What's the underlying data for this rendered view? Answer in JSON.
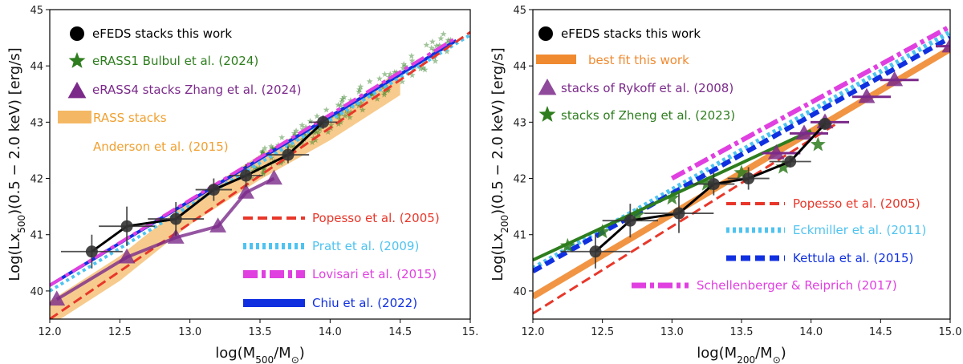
{
  "chart_data": [
    {
      "type": "scatter",
      "panel": "left",
      "xlabel": "log(M500/M☉)",
      "ylabel": "Log(Lx500)(0.5 − 2.0 keV) [erg/s]",
      "xlim": [
        12.0,
        15.0
      ],
      "ylim": [
        39.5,
        45.0
      ],
      "xticks": [
        "12.0",
        "12.5",
        "13.0",
        "13.5",
        "14.0",
        "14.5",
        "15."
      ],
      "yticks": [
        "40",
        "41",
        "42",
        "43",
        "44",
        "45"
      ],
      "eFEDS": {
        "name": "eFEDS stacks this work",
        "color": "#000000",
        "x": [
          12.3,
          12.55,
          12.9,
          13.17,
          13.4,
          13.7,
          13.95
        ],
        "y": [
          40.7,
          41.15,
          41.28,
          41.8,
          42.05,
          42.42,
          43.0
        ],
        "xerr": [
          0.22,
          0.2,
          0.2,
          0.13,
          0.12,
          0.15,
          0.1
        ],
        "yerr": [
          0.3,
          0.35,
          0.3,
          0.2,
          0.2,
          0.15,
          0.12
        ]
      },
      "eRASS4": {
        "name": "eRASS4 stacks Zhang et al. (2024)",
        "color": "#7b2a8a",
        "x": [
          12.05,
          12.55,
          12.9,
          13.2,
          13.4,
          13.6
        ],
        "y": [
          39.85,
          40.6,
          40.95,
          41.15,
          41.75,
          42.0
        ]
      },
      "eRASS1": {
        "name": "eRASS1 Bulbul et al. (2024)",
        "color": "#2e7d1e",
        "x_range": [
          13.4,
          14.9
        ],
        "line": [
          [
            13.4,
            42.1
          ],
          [
            14.9,
            44.5
          ]
        ]
      },
      "RASS": {
        "name": "RASS stacks",
        "name2": "Anderson et al. (2015)",
        "color": "#f0a030",
        "centre": [
          [
            12.0,
            39.6
          ],
          [
            12.5,
            40.4
          ],
          [
            13.0,
            41.4
          ],
          [
            13.5,
            42.2
          ],
          [
            14.0,
            42.9
          ],
          [
            14.5,
            43.7
          ]
        ]
      },
      "relations": [
        {
          "name": "Popesso et al. (2005)",
          "color": "#e8372a",
          "style": "dashed",
          "line": [
            [
              12.0,
              39.5
            ],
            [
              15.0,
              44.6
            ]
          ]
        },
        {
          "name": "Pratt et al. (2009)",
          "color": "#4fc3f0",
          "style": "dotted",
          "line": [
            [
              12.0,
              40.0
            ],
            [
              15.0,
              44.55
            ]
          ]
        },
        {
          "name": "Lovisari et al. (2015)",
          "color": "#e040e0",
          "style": "dashdot",
          "line": [
            [
              12.0,
              40.1
            ],
            [
              14.9,
              44.5
            ]
          ]
        },
        {
          "name": "Chiu et al. (2022)",
          "color": "#1030e0",
          "style": "solid",
          "line": [
            [
              12.0,
              40.1
            ],
            [
              14.9,
              44.45
            ]
          ]
        }
      ]
    },
    {
      "type": "scatter",
      "panel": "right",
      "xlabel": "log(M200/M☉)",
      "ylabel": "Log(Lx200)(0.5 − 2.0 keV) [erg/s]",
      "xlim": [
        12.0,
        15.0
      ],
      "ylim": [
        39.5,
        45.0
      ],
      "xticks": [
        "12.0",
        "12.5",
        "13.0",
        "13.5",
        "14.0",
        "14.5",
        "15.0"
      ],
      "yticks": [
        "40",
        "41",
        "42",
        "43",
        "44",
        "45"
      ],
      "eFEDS": {
        "name": "eFEDS stacks this work",
        "color": "#000000",
        "x": [
          12.45,
          12.7,
          13.05,
          13.3,
          13.55,
          13.85,
          14.1
        ],
        "y": [
          40.7,
          41.25,
          41.38,
          41.9,
          42.0,
          42.3,
          42.97
        ],
        "xerr": [
          0.25,
          0.2,
          0.25,
          0.15,
          0.15,
          0.15,
          0.05
        ],
        "yerr": [
          0.3,
          0.3,
          0.35,
          0.2,
          0.2,
          0.1,
          0.1
        ]
      },
      "bestfit": {
        "name": "best fit this work",
        "color": "#f08a30",
        "line": [
          [
            12.0,
            39.9
          ],
          [
            15.0,
            44.3
          ]
        ]
      },
      "rykoff": {
        "name": "stacks of Rykoff et al. (2008)",
        "color": "#7b2a8a",
        "x": [
          13.75,
          13.95,
          14.1,
          14.4,
          14.6,
          15.0
        ],
        "y": [
          42.45,
          42.8,
          43.0,
          43.45,
          43.75,
          44.35
        ]
      },
      "zheng": {
        "name": "stacks of Zheng et al. (2023)",
        "color": "#2e7d1e",
        "x": [
          12.25,
          12.5,
          12.75,
          13.0,
          13.25,
          13.5,
          13.8,
          14.05
        ],
        "y": [
          40.8,
          41.05,
          41.35,
          41.65,
          41.9,
          42.1,
          42.2,
          42.6
        ]
      },
      "relations": [
        {
          "name": "Popesso et al. (2005)",
          "color": "#e8372a",
          "style": "dashed",
          "line": [
            [
              12.0,
              39.6
            ],
            [
              14.2,
              43.0
            ]
          ]
        },
        {
          "name": "Eckmiller et al. (2011)",
          "color": "#4fc3f0",
          "style": "dotted",
          "line": [
            [
              12.0,
              40.4
            ],
            [
              15.0,
              44.6
            ]
          ]
        },
        {
          "name": "Kettula et al. (2015)",
          "color": "#1030e0",
          "style": "dashed",
          "line": [
            [
              12.0,
              40.35
            ],
            [
              15.0,
              44.5
            ]
          ]
        },
        {
          "name": "Schellenberger & Reiprich (2017)",
          "color": "#e040e0",
          "style": "dashdot",
          "line": [
            [
              13.0,
              42.0
            ],
            [
              15.0,
              44.7
            ]
          ]
        }
      ],
      "zheng_line": {
        "color": "#2e7d1e",
        "line": [
          [
            12.0,
            40.55
          ],
          [
            14.0,
            42.85
          ]
        ]
      }
    }
  ]
}
